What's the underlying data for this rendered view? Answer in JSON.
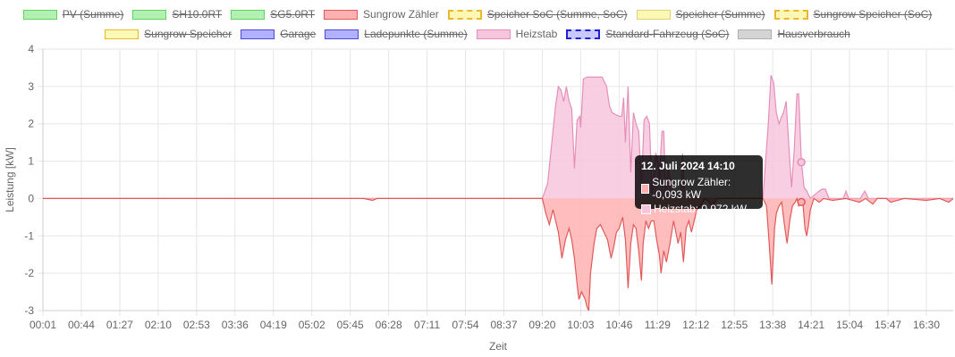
{
  "legend": [
    {
      "label": "PV (Summe)",
      "fill": "#b3f0b3",
      "stroke": "#5fd35f",
      "dashed": false,
      "hidden": true
    },
    {
      "label": "SH10.0RT",
      "fill": "#b3f0b3",
      "stroke": "#5fd35f",
      "dashed": false,
      "hidden": true
    },
    {
      "label": "SG5.0RT",
      "fill": "#b3f0b3",
      "stroke": "#5fd35f",
      "dashed": false,
      "hidden": true
    },
    {
      "label": "Sungrow Zähler",
      "fill": "#ffb1b1",
      "stroke": "#e05a5a",
      "dashed": false,
      "hidden": false
    },
    {
      "label": "Speicher SoC (Summe, SoC)",
      "fill": "#fff7b3",
      "stroke": "#e8b92e",
      "dashed": true,
      "hidden": true
    },
    {
      "label": "Speicher (Summe)",
      "fill": "#fbf8b3",
      "stroke": "#e0d27a",
      "dashed": false,
      "hidden": true
    },
    {
      "label": "Sungrow Speicher (SoC)",
      "fill": "#fff7b3",
      "stroke": "#e8b92e",
      "dashed": true,
      "hidden": true
    },
    {
      "label": "Sungrow Speicher",
      "fill": "#fbf8b3",
      "stroke": "#e8b92e",
      "dashed": false,
      "hidden": true
    },
    {
      "label": "Garage",
      "fill": "#b1b1ff",
      "stroke": "#4a4ad8",
      "dashed": false,
      "hidden": true
    },
    {
      "label": "Ladepunkte (Summe)",
      "fill": "#b1b1ff",
      "stroke": "#4a4ad8",
      "dashed": false,
      "hidden": true
    },
    {
      "label": "Heizstab",
      "fill": "#f7c5dd",
      "stroke": "#e58fb8",
      "dashed": false,
      "hidden": false
    },
    {
      "label": "Standard-Fahrzeug (SoC)",
      "fill": "#c8c8ff",
      "stroke": "#2020d0",
      "dashed": true,
      "hidden": true
    },
    {
      "label": "Hausverbrauch",
      "fill": "#d4d4d4",
      "stroke": "#b0b0b0",
      "dashed": false,
      "hidden": true
    }
  ],
  "tooltip": {
    "title": "12. Juli 2024 14:10",
    "rows": [
      {
        "text": "Sungrow Zähler: -0,093 kW",
        "color": "#ffb1b1"
      },
      {
        "text": "Heizstab: 0,972 kW",
        "color": "#f7c5dd"
      }
    ]
  },
  "chart_data": {
    "type": "area",
    "xlabel": "Zeit",
    "ylabel": "Leistung [kW]",
    "ylim": [
      -3,
      4
    ],
    "yticks": [
      -3,
      -2,
      -1,
      0,
      1,
      2,
      3,
      4
    ],
    "xlim": [
      "00:01",
      "17:00"
    ],
    "xticks": [
      "00:01",
      "00:44",
      "01:27",
      "02:10",
      "02:53",
      "03:36",
      "04:19",
      "05:02",
      "05:45",
      "06:28",
      "07:11",
      "07:54",
      "08:37",
      "09:20",
      "10:03",
      "10:46",
      "11:29",
      "12:12",
      "12:55",
      "13:38",
      "14:21",
      "15:04",
      "15:47",
      "16:30"
    ],
    "grid": true,
    "legend_position": "top",
    "series": [
      {
        "name": "Heizstab",
        "fill": "#f7c5dd",
        "stroke": "#e58fb8",
        "points": [
          [
            "00:01",
            0
          ],
          [
            "09:20",
            0
          ],
          [
            "09:26",
            0.4
          ],
          [
            "09:32",
            1.8
          ],
          [
            "09:35",
            2.5
          ],
          [
            "09:38",
            3.0
          ],
          [
            "09:41",
            2.9
          ],
          [
            "09:44",
            2.6
          ],
          [
            "09:47",
            3.0
          ],
          [
            "09:50",
            2.6
          ],
          [
            "09:53",
            2.4
          ],
          [
            "09:56",
            0.8
          ],
          [
            "09:59",
            2.1
          ],
          [
            "10:02",
            2.2
          ],
          [
            "10:03",
            1.9
          ],
          [
            "10:06",
            3.2
          ],
          [
            "10:10",
            3.25
          ],
          [
            "10:20",
            3.25
          ],
          [
            "10:27",
            3.25
          ],
          [
            "10:30",
            3.1
          ],
          [
            "10:32",
            3.0
          ],
          [
            "10:35",
            2.5
          ],
          [
            "10:38",
            2.3
          ],
          [
            "10:42",
            2.25
          ],
          [
            "10:46",
            2.2
          ],
          [
            "10:49",
            2.2
          ],
          [
            "10:51",
            2.7
          ],
          [
            "10:53",
            1.5
          ],
          [
            "10:56",
            3.0
          ],
          [
            "10:59",
            0.7
          ],
          [
            "11:02",
            2.3
          ],
          [
            "11:05",
            2.0
          ],
          [
            "11:08",
            1.8
          ],
          [
            "11:11",
            0.3
          ],
          [
            "11:14",
            2.1
          ],
          [
            "11:17",
            2.2
          ],
          [
            "11:20",
            2.0
          ],
          [
            "11:23",
            0.1
          ],
          [
            "11:27",
            1.2
          ],
          [
            "11:29",
            1.1
          ],
          [
            "11:31",
            0.5
          ],
          [
            "11:34",
            1.8
          ],
          [
            "11:36",
            1.8
          ],
          [
            "11:38",
            0.2
          ],
          [
            "11:41",
            0.8
          ],
          [
            "11:46",
            0.2
          ],
          [
            "11:49",
            0.0
          ],
          [
            "11:52",
            0.0
          ],
          [
            "11:55",
            0.0
          ],
          [
            "11:57",
            1.2
          ],
          [
            "11:59",
            0.2
          ],
          [
            "12:05",
            0.0
          ],
          [
            "13:20",
            0.0
          ],
          [
            "13:27",
            0.0
          ],
          [
            "13:33",
            2.0
          ],
          [
            "13:36",
            3.3
          ],
          [
            "13:39",
            3.1
          ],
          [
            "13:42",
            2.3
          ],
          [
            "13:45",
            2.0
          ],
          [
            "13:48",
            2.2
          ],
          [
            "13:50",
            2.3
          ],
          [
            "13:53",
            2.6
          ],
          [
            "13:56",
            1.4
          ],
          [
            "13:59",
            0.3
          ],
          [
            "14:02",
            1.3
          ],
          [
            "14:05",
            2.8
          ],
          [
            "14:07",
            2.8
          ],
          [
            "14:10",
            0.972
          ],
          [
            "14:13",
            0.3
          ],
          [
            "14:16",
            0.2
          ],
          [
            "14:20",
            0.0
          ],
          [
            "14:30",
            0.2
          ],
          [
            "14:33",
            0.25
          ],
          [
            "14:37",
            0.25
          ],
          [
            "14:41",
            0.0
          ],
          [
            "14:57",
            0.0
          ],
          [
            "15:00",
            0.2
          ],
          [
            "15:03",
            0.0
          ],
          [
            "15:16",
            0.0
          ],
          [
            "15:21",
            0.2
          ],
          [
            "15:25",
            0.0
          ],
          [
            "17:00",
            0.0
          ]
        ]
      },
      {
        "name": "Sungrow Zähler",
        "fill": "#ffb1b1",
        "stroke": "#e05a5a",
        "points": [
          [
            "00:01",
            0
          ],
          [
            "06:00",
            0
          ],
          [
            "06:10",
            -0.05
          ],
          [
            "06:15",
            0
          ],
          [
            "09:18",
            0
          ],
          [
            "09:20",
            0.0
          ],
          [
            "09:24",
            -0.4
          ],
          [
            "09:28",
            -0.7
          ],
          [
            "09:32",
            -0.3
          ],
          [
            "09:38",
            -0.9
          ],
          [
            "09:42",
            -1.6
          ],
          [
            "09:46",
            -1.1
          ],
          [
            "09:50",
            -0.8
          ],
          [
            "09:53",
            -1.1
          ],
          [
            "09:56",
            -1.6
          ],
          [
            "09:59",
            -2.3
          ],
          [
            "10:01",
            -2.7
          ],
          [
            "10:04",
            -2.5
          ],
          [
            "10:06",
            -2.6
          ],
          [
            "10:08",
            -2.7
          ],
          [
            "10:10",
            -2.9
          ],
          [
            "10:12",
            -3.0
          ],
          [
            "10:14",
            -2.0
          ],
          [
            "10:18",
            -1.2
          ],
          [
            "10:21",
            -0.8
          ],
          [
            "10:25",
            -0.7
          ],
          [
            "10:29",
            -0.9
          ],
          [
            "10:33",
            -1.1
          ],
          [
            "10:37",
            -1.6
          ],
          [
            "10:40",
            -1.3
          ],
          [
            "10:43",
            -0.9
          ],
          [
            "10:46",
            -0.8
          ],
          [
            "10:50",
            -0.5
          ],
          [
            "10:53",
            -1.1
          ],
          [
            "10:56",
            -2.4
          ],
          [
            "10:59",
            -1.2
          ],
          [
            "11:02",
            -0.7
          ],
          [
            "11:05",
            -0.8
          ],
          [
            "11:08",
            -1.4
          ],
          [
            "11:11",
            -2.2
          ],
          [
            "11:13",
            -1.2
          ],
          [
            "11:16",
            -0.6
          ],
          [
            "11:19",
            -0.8
          ],
          [
            "11:22",
            -0.6
          ],
          [
            "11:25",
            -0.6
          ],
          [
            "11:28",
            -1.1
          ],
          [
            "11:31",
            -1.5
          ],
          [
            "11:33",
            -2.0
          ],
          [
            "11:36",
            -1.4
          ],
          [
            "11:39",
            -1.7
          ],
          [
            "11:43",
            -1.2
          ],
          [
            "11:47",
            -0.6
          ],
          [
            "11:52",
            -1.2
          ],
          [
            "11:55",
            -0.9
          ],
          [
            "11:58",
            -1.7
          ],
          [
            "12:01",
            -0.8
          ],
          [
            "12:04",
            -0.6
          ],
          [
            "12:07",
            -0.9
          ],
          [
            "12:10",
            -0.6
          ],
          [
            "12:13",
            -0.3
          ],
          [
            "12:17",
            -0.2
          ],
          [
            "12:22",
            0.0
          ],
          [
            "12:27",
            -0.1
          ],
          [
            "12:30",
            -0.2
          ],
          [
            "12:33",
            -0.1
          ],
          [
            "12:36",
            0.0
          ],
          [
            "13:20",
            0.0
          ],
          [
            "13:27",
            0.0
          ],
          [
            "13:31",
            -0.2
          ],
          [
            "13:34",
            -1.2
          ],
          [
            "13:37",
            -2.3
          ],
          [
            "13:40",
            -0.8
          ],
          [
            "13:42",
            -0.4
          ],
          [
            "13:45",
            -0.2
          ],
          [
            "13:48",
            -0.1
          ],
          [
            "13:51",
            -0.7
          ],
          [
            "13:54",
            -1.2
          ],
          [
            "13:57",
            -0.6
          ],
          [
            "14:00",
            -0.2
          ],
          [
            "14:03",
            -0.1
          ],
          [
            "14:05",
            0.0
          ],
          [
            "14:07",
            -0.2
          ],
          [
            "14:10",
            -0.093
          ],
          [
            "14:12",
            -0.2
          ],
          [
            "14:14",
            -0.8
          ],
          [
            "14:16",
            -1.0
          ],
          [
            "14:18",
            -0.7
          ],
          [
            "14:20",
            -0.3
          ],
          [
            "14:24",
            0.0
          ],
          [
            "14:30",
            -0.1
          ],
          [
            "14:35",
            0.0
          ],
          [
            "14:45",
            -0.05
          ],
          [
            "15:00",
            0.0
          ],
          [
            "15:15",
            -0.1
          ],
          [
            "15:22",
            0.0
          ],
          [
            "15:30",
            -0.15
          ],
          [
            "15:35",
            0.0
          ],
          [
            "15:45",
            0.0
          ],
          [
            "15:50",
            -0.1
          ],
          [
            "16:05",
            0.0
          ],
          [
            "16:30",
            -0.05
          ],
          [
            "16:45",
            0.0
          ],
          [
            "16:55",
            -0.1
          ],
          [
            "17:00",
            0.0
          ]
        ]
      }
    ]
  }
}
